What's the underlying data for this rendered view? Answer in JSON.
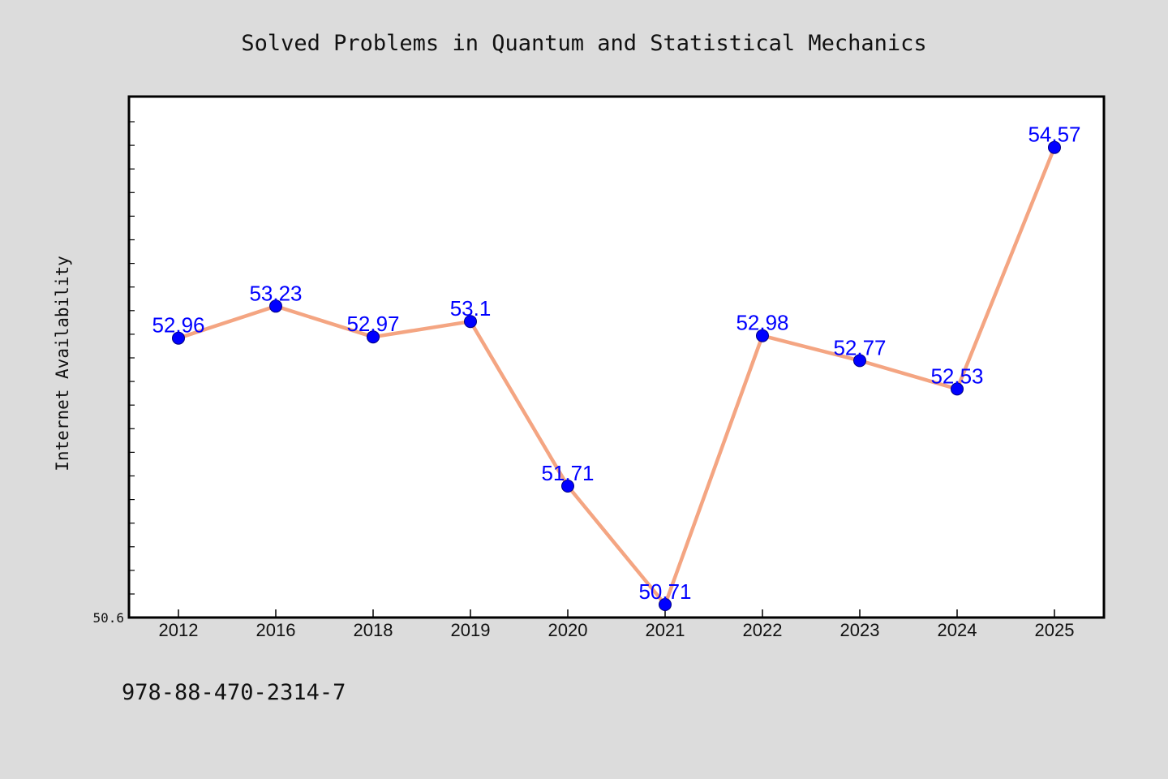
{
  "chart_data": {
    "type": "line",
    "title": "Solved Problems in Quantum and Statistical Mechanics",
    "xlabel": "",
    "ylabel": "Internet Availability",
    "categories": [
      "2012",
      "2016",
      "2018",
      "2019",
      "2020",
      "2021",
      "2022",
      "2023",
      "2024",
      "2025"
    ],
    "series": [
      {
        "values": [
          52.96,
          53.23,
          52.97,
          53.1,
          51.71,
          50.71,
          52.98,
          52.77,
          52.53,
          54.57
        ]
      }
    ],
    "data_labels": [
      "52.96",
      "53.23",
      "52.97",
      "53.1",
      "51.71",
      "50.71",
      "52.98",
      "52.77",
      "52.53",
      "54.57"
    ],
    "ylim": [
      50.6,
      55.0
    ],
    "ytick_labels": [
      "50.6"
    ],
    "grid": false,
    "legend": "none",
    "colors": {
      "line": "#f4a582",
      "marker": "#0000ff",
      "label": "#0000ff",
      "background": "#dcdcdc",
      "plot_background": "#ffffff"
    }
  },
  "footer": {
    "isbn": "978-88-470-2314-7"
  }
}
